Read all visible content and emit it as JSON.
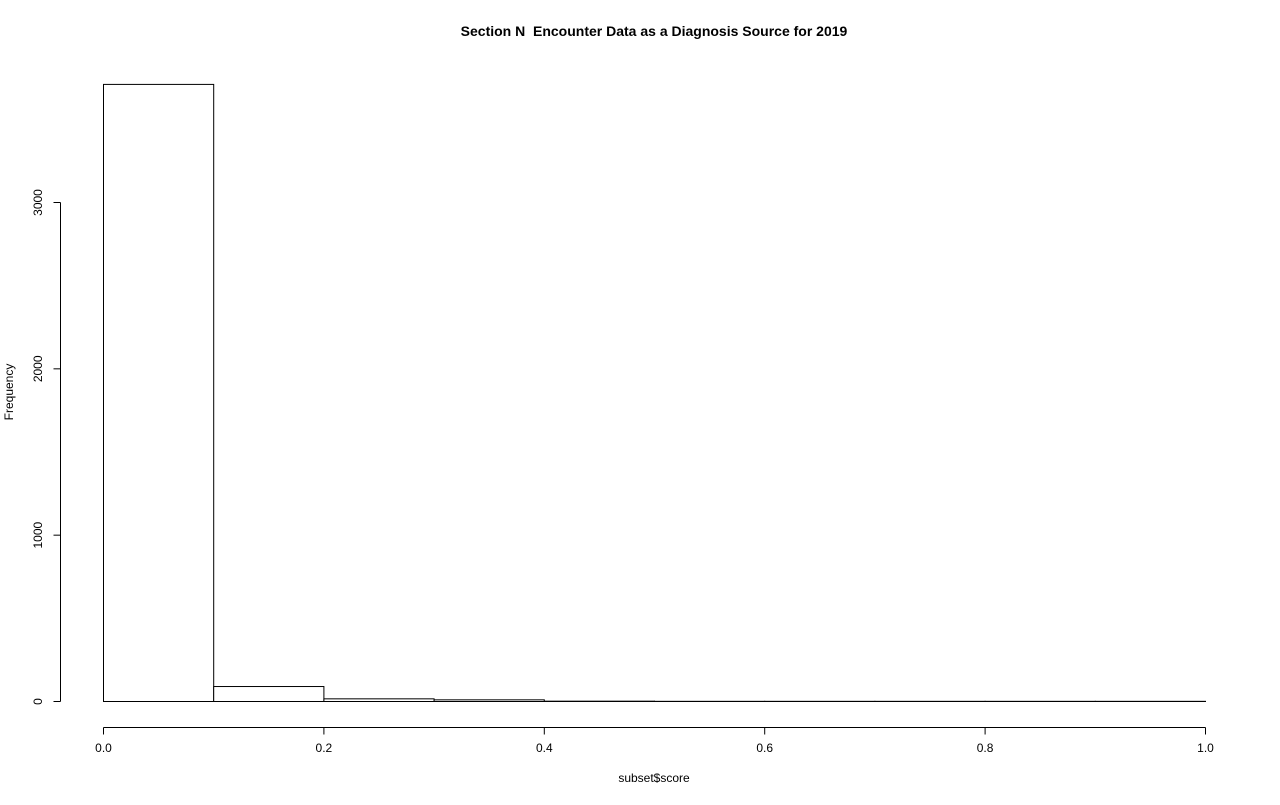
{
  "chart_data": {
    "type": "bar",
    "title": "Section N  Encounter Data as a Diagnosis Source for 2019",
    "xlabel": "subset$score",
    "ylabel": "Frequency",
    "xlim": [
      0,
      1
    ],
    "ylim": [
      0,
      3700
    ],
    "grid": false,
    "legend": "none",
    "bins": [
      {
        "x0": 0.0,
        "x1": 0.1,
        "count": 3710
      },
      {
        "x0": 0.1,
        "x1": 0.2,
        "count": 90
      },
      {
        "x0": 0.2,
        "x1": 0.3,
        "count": 16
      },
      {
        "x0": 0.3,
        "x1": 0.4,
        "count": 10
      },
      {
        "x0": 0.4,
        "x1": 0.5,
        "count": 2
      },
      {
        "x0": 0.5,
        "x1": 0.6,
        "count": 1
      },
      {
        "x0": 0.6,
        "x1": 0.7,
        "count": 1
      },
      {
        "x0": 0.7,
        "x1": 0.8,
        "count": 1
      },
      {
        "x0": 0.8,
        "x1": 0.9,
        "count": 1
      },
      {
        "x0": 0.9,
        "x1": 1.0,
        "count": 1
      }
    ],
    "x_ticks": [
      {
        "value": 0.0,
        "label": "0.0"
      },
      {
        "value": 0.2,
        "label": "0.2"
      },
      {
        "value": 0.4,
        "label": "0.4"
      },
      {
        "value": 0.6,
        "label": "0.6"
      },
      {
        "value": 0.8,
        "label": "0.8"
      },
      {
        "value": 1.0,
        "label": "1.0"
      }
    ],
    "y_ticks": [
      {
        "value": 0,
        "label": "0"
      },
      {
        "value": 1000,
        "label": "1000"
      },
      {
        "value": 2000,
        "label": "2000"
      },
      {
        "value": 3000,
        "label": "3000"
      }
    ],
    "colors": {
      "bar_fill": "#ffffff",
      "bar_stroke": "#000000",
      "axis": "#000000"
    }
  }
}
